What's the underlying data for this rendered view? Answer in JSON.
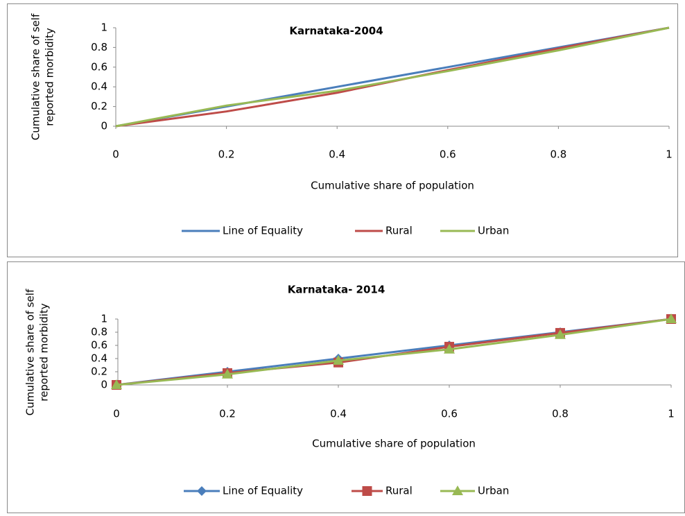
{
  "chart_data": [
    {
      "type": "line",
      "title": "Karnataka-2004",
      "xlabel": "Cumulative share of population",
      "ylabel": [
        "Cumulative share of self",
        "reported morbidity"
      ],
      "x": [
        0,
        0.2,
        0.4,
        0.6,
        0.8,
        1
      ],
      "xlim": [
        0,
        1
      ],
      "xticks": [
        0,
        0.2,
        0.4,
        0.6,
        0.8,
        1
      ],
      "ylim": [
        0,
        1
      ],
      "yticks": [
        0,
        0.2,
        0.4,
        0.6,
        0.8,
        1
      ],
      "markers": false,
      "legend": "bottom",
      "series": [
        {
          "name": "Line of Equality",
          "color": "#4a7ebb",
          "values": [
            0,
            0.2,
            0.4,
            0.6,
            0.8,
            1
          ]
        },
        {
          "name": "Rural",
          "color": "#be4b48",
          "values": [
            0,
            0.15,
            0.34,
            0.57,
            0.79,
            1
          ]
        },
        {
          "name": "Urban",
          "color": "#98b954",
          "values": [
            0,
            0.21,
            0.36,
            0.56,
            0.77,
            1
          ]
        }
      ]
    },
    {
      "type": "line",
      "title": "Karnataka- 2014",
      "xlabel": "Cumulative share of population",
      "ylabel": [
        "Cumulative share of self",
        "reported morbidity"
      ],
      "x": [
        0,
        0.2,
        0.4,
        0.6,
        0.8,
        1
      ],
      "xlim": [
        0,
        1
      ],
      "xticks": [
        0,
        0.2,
        0.4,
        0.6,
        0.8,
        1
      ],
      "ylim": [
        0,
        1
      ],
      "yticks": [
        0,
        0.2,
        0.4,
        0.6,
        0.8,
        1
      ],
      "markers": true,
      "legend": "bottom",
      "series": [
        {
          "name": "Line of Equality",
          "color": "#4a7ebb",
          "values": [
            0,
            0.2,
            0.4,
            0.6,
            0.8,
            1
          ]
        },
        {
          "name": "Rural",
          "color": "#be4b48",
          "values": [
            0,
            0.18,
            0.34,
            0.58,
            0.79,
            1
          ]
        },
        {
          "name": "Urban",
          "color": "#98b954",
          "values": [
            0,
            0.16,
            0.37,
            0.54,
            0.76,
            1
          ]
        }
      ]
    }
  ]
}
